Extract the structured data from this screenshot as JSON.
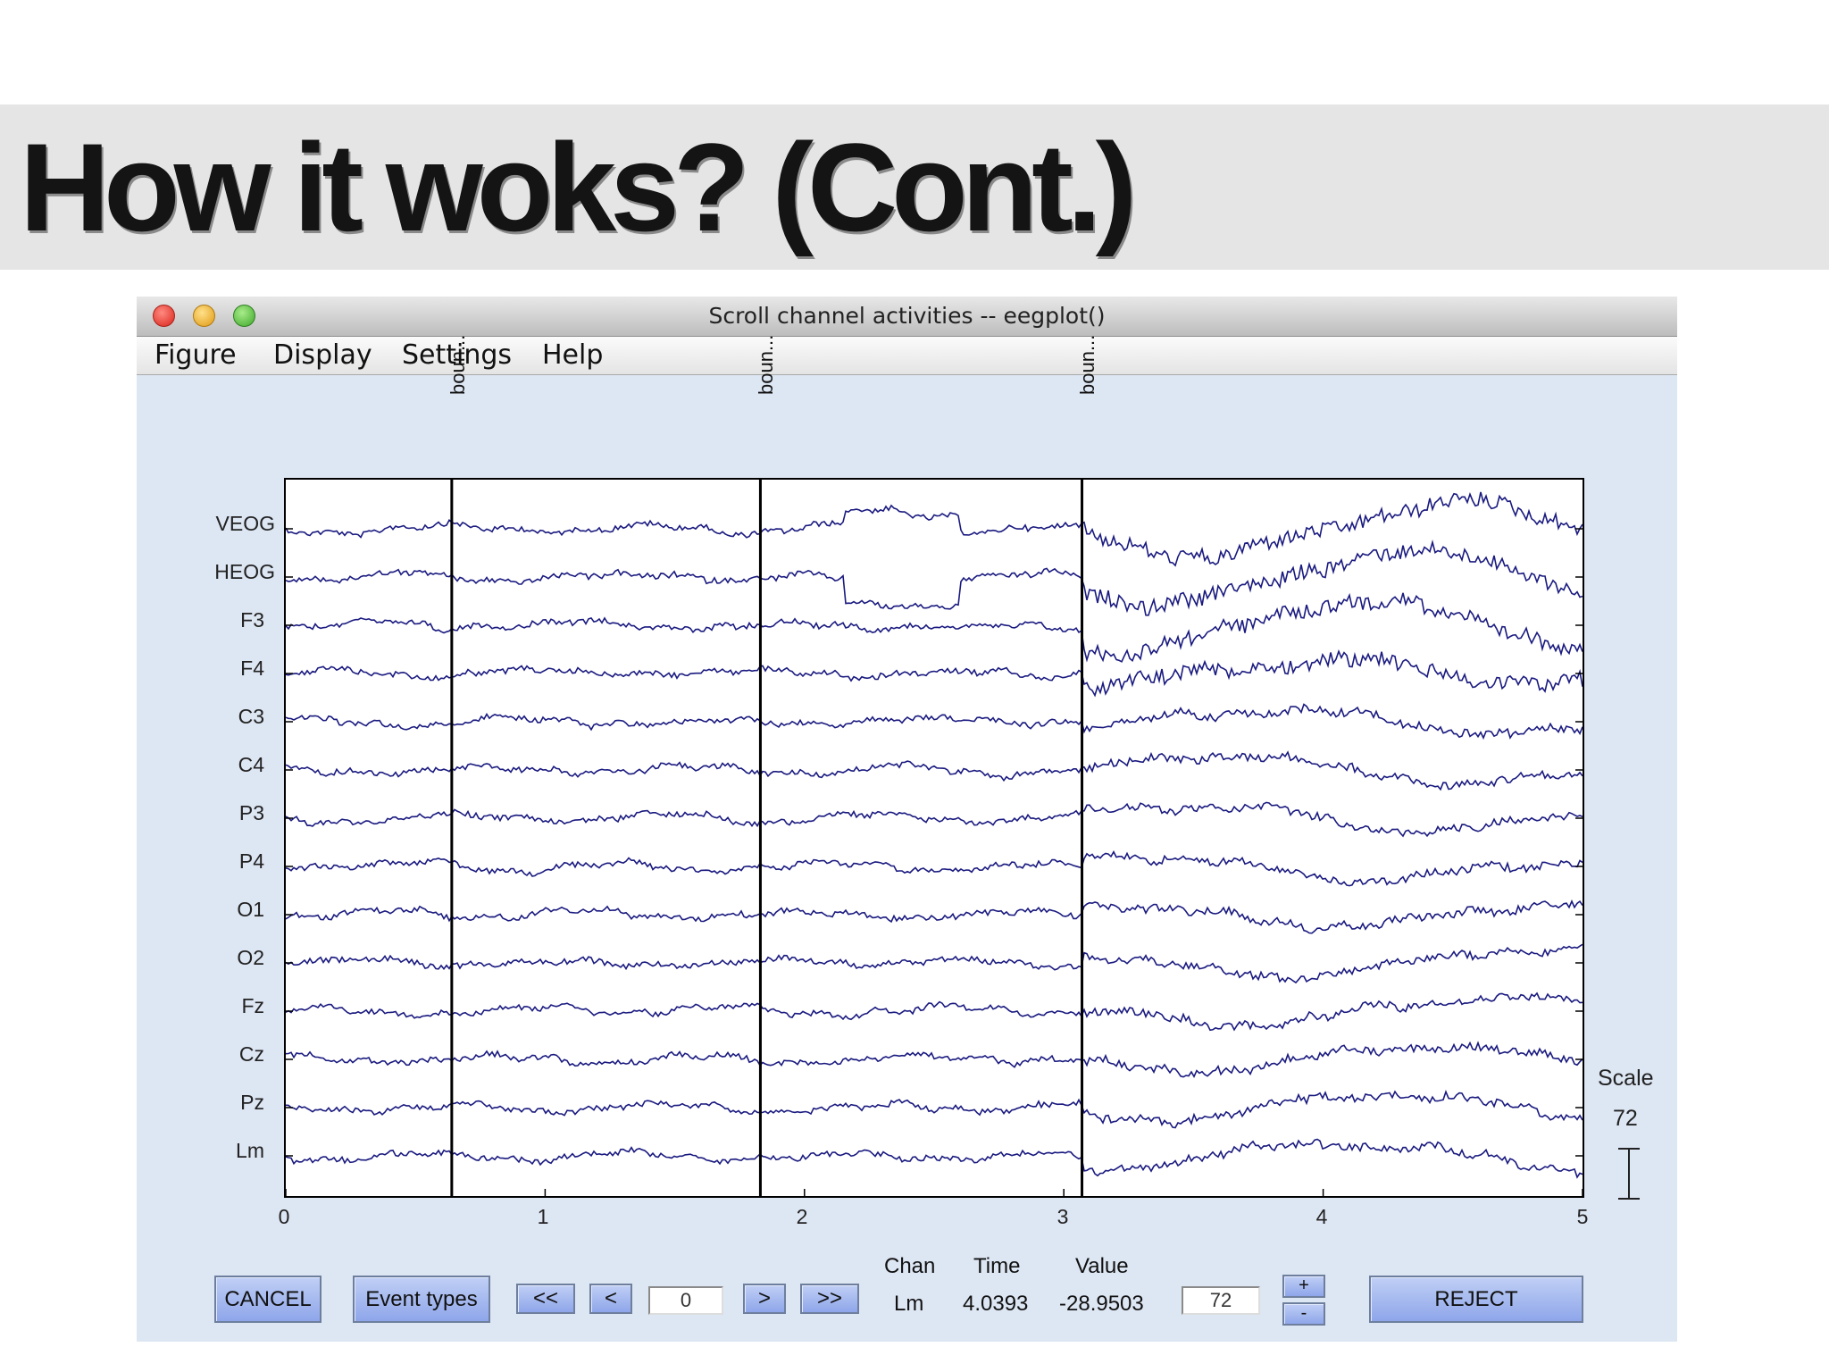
{
  "slide": {
    "title": "How it woks? (Cont.)"
  },
  "window": {
    "title": "Scroll channel activities -- eegplot()",
    "menu": [
      "Figure",
      "Display",
      "Settings",
      "Help"
    ]
  },
  "plot": {
    "event_labels": [
      "boun...",
      "boun...",
      "boun..."
    ],
    "event_times": [
      0.64,
      1.83,
      3.07
    ],
    "channels": [
      "VEOG",
      "HEOG",
      "F3",
      "F4",
      "C3",
      "C4",
      "P3",
      "P4",
      "O1",
      "O2",
      "Fz",
      "Cz",
      "Pz",
      "Lm"
    ],
    "x_ticks": [
      "0",
      "1",
      "2",
      "3",
      "4",
      "5"
    ],
    "x_range": [
      0,
      5
    ],
    "trace_color": "#1a1a80",
    "scale_label": "Scale",
    "scale_value": "72"
  },
  "controls": {
    "cancel": "CANCEL",
    "event_types": "Event types",
    "rewind": "<<",
    "prev": "<",
    "position_value": "0",
    "next": ">",
    "fast_forward": ">>",
    "chan_header": "Chan",
    "time_header": "Time",
    "value_header": "Value",
    "chan_value": "Lm",
    "time_value": "4.0393",
    "value_value": "-28.9503",
    "scale_input": "72",
    "scale_up": "+",
    "scale_down": "-",
    "reject": "REJECT"
  }
}
